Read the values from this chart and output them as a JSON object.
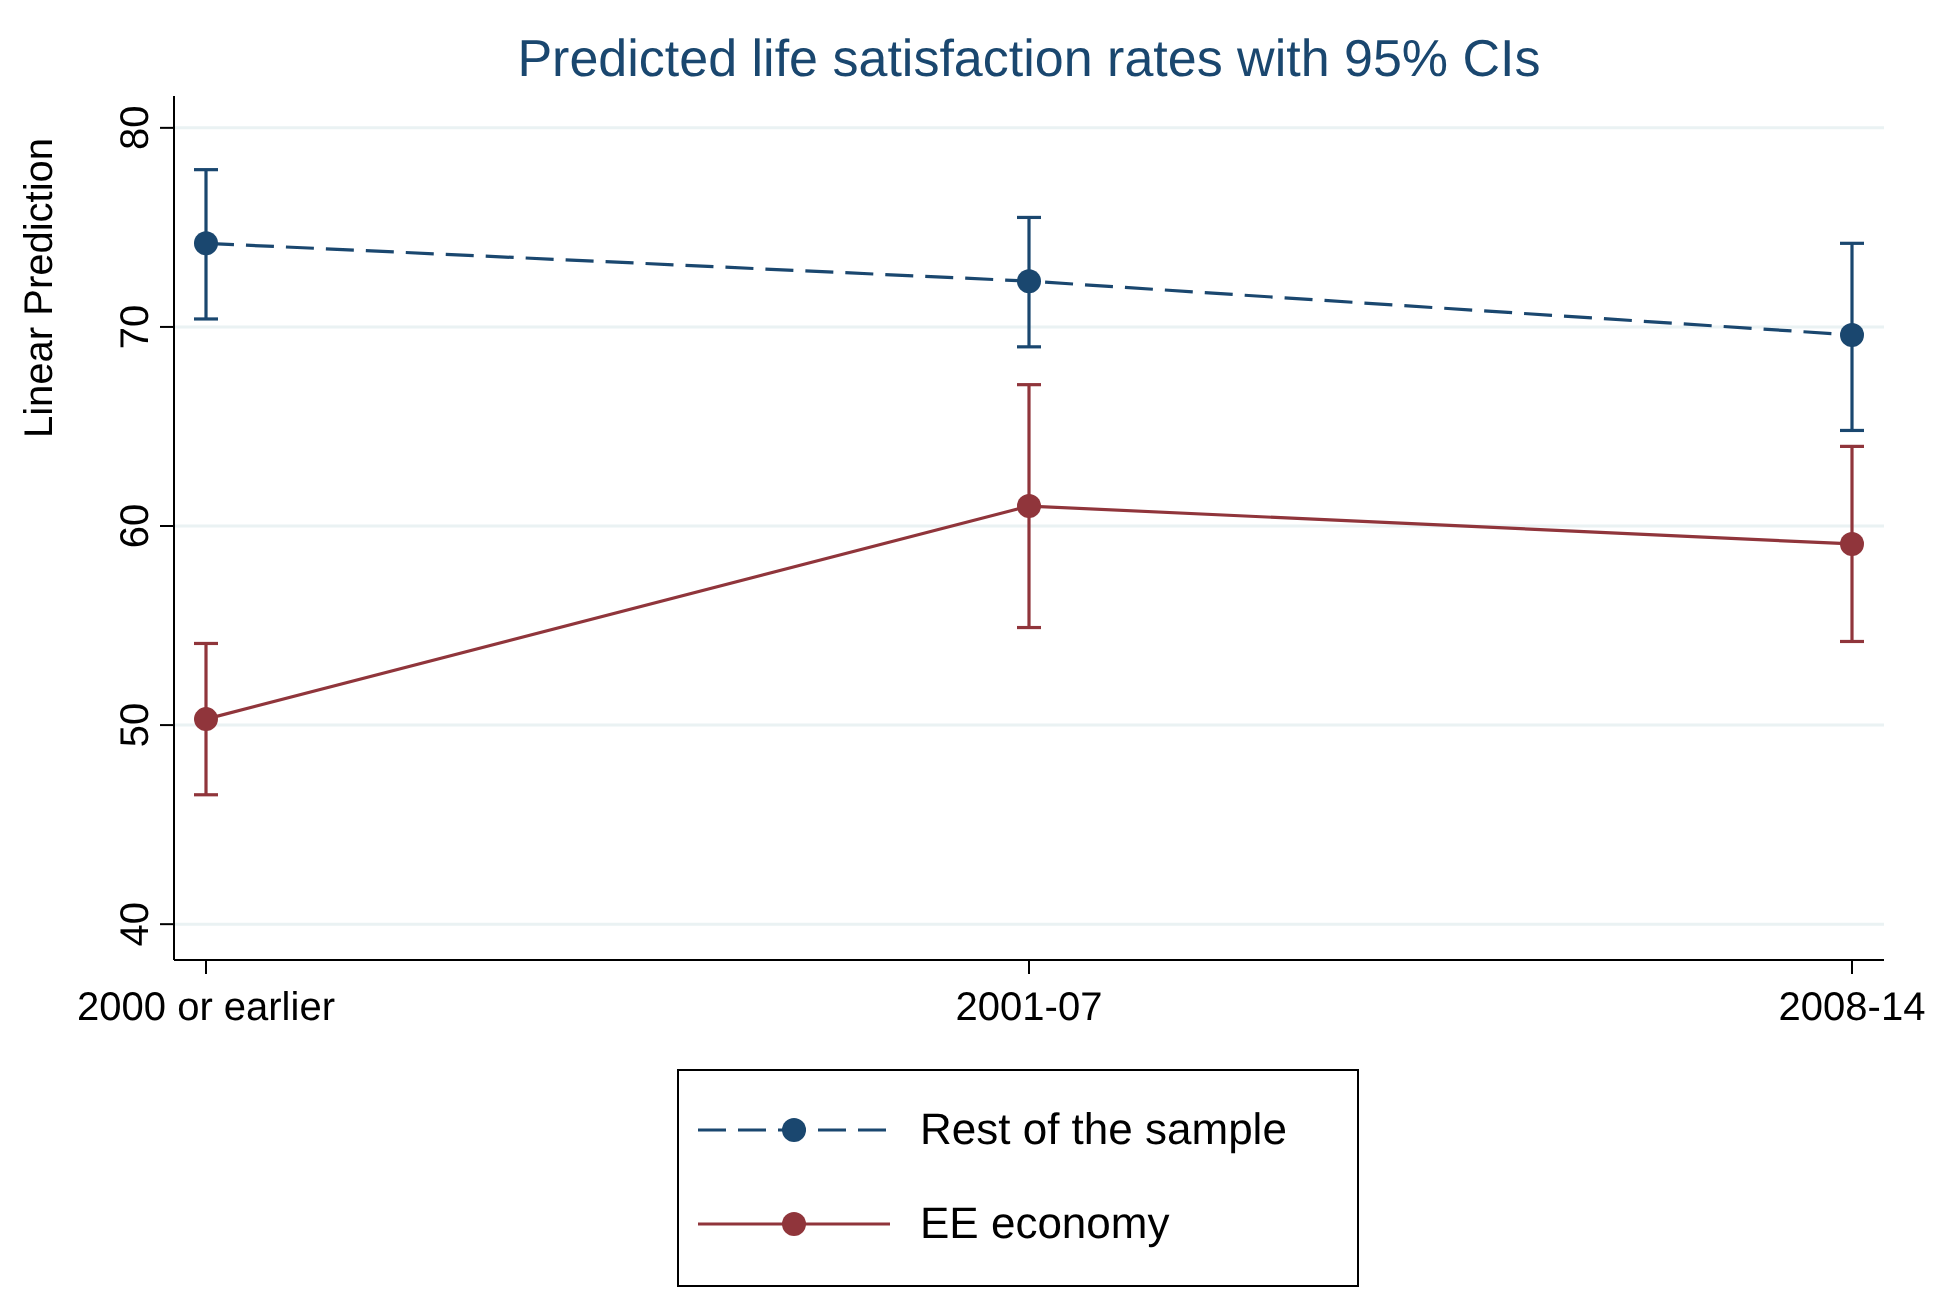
{
  "chart_data": {
    "type": "line",
    "title": "Predicted life satisfaction rates with 95% CIs",
    "ylabel": "Linear Prediction",
    "categories": [
      "2000 or earlier",
      "2001-07",
      "2008-14"
    ],
    "series": [
      {
        "name": "Rest of the sample",
        "color": "#1a476f",
        "line_style": "dashed",
        "values": [
          74.2,
          72.3,
          69.6
        ],
        "errors": [
          [
            70.4,
            77.9
          ],
          [
            69.0,
            75.5
          ],
          [
            64.8,
            74.2
          ]
        ]
      },
      {
        "name": "EE economy",
        "color": "#90353b",
        "line_style": "solid",
        "values": [
          50.3,
          61.0,
          59.1
        ],
        "errors": [
          [
            46.5,
            54.1
          ],
          [
            54.9,
            67.1
          ],
          [
            54.2,
            64.0
          ]
        ]
      }
    ],
    "ylim": [
      38.2,
      81.6
    ],
    "yticks": [
      40,
      50,
      60,
      70,
      80
    ],
    "grid": "y",
    "legend": "bottom",
    "marker": "circle"
  }
}
